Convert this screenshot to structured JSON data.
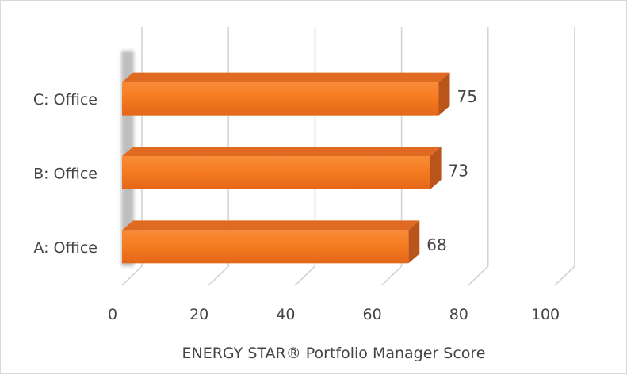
{
  "chart_data": {
    "type": "bar",
    "orientation": "horizontal",
    "style": "3d",
    "categories": [
      "A: Office",
      "B: Office",
      "C: Office"
    ],
    "values": [
      68,
      73,
      75
    ],
    "data_labels": [
      "68",
      "73",
      "75"
    ],
    "title": "",
    "xlabel": "ENERGY STAR® Portfolio Manager Score",
    "ylabel": "",
    "xlim": [
      0,
      100
    ],
    "x_ticks": [
      0,
      20,
      40,
      60,
      80,
      100
    ],
    "x_tick_labels": [
      "0",
      "20",
      "40",
      "60",
      "80",
      "100"
    ],
    "grid": true,
    "legend": "none",
    "colors": {
      "bar_front": "#f47a1f",
      "bar_top": "#e06a22",
      "bar_side": "#b9541a",
      "grid": "#d4d4d4"
    }
  }
}
